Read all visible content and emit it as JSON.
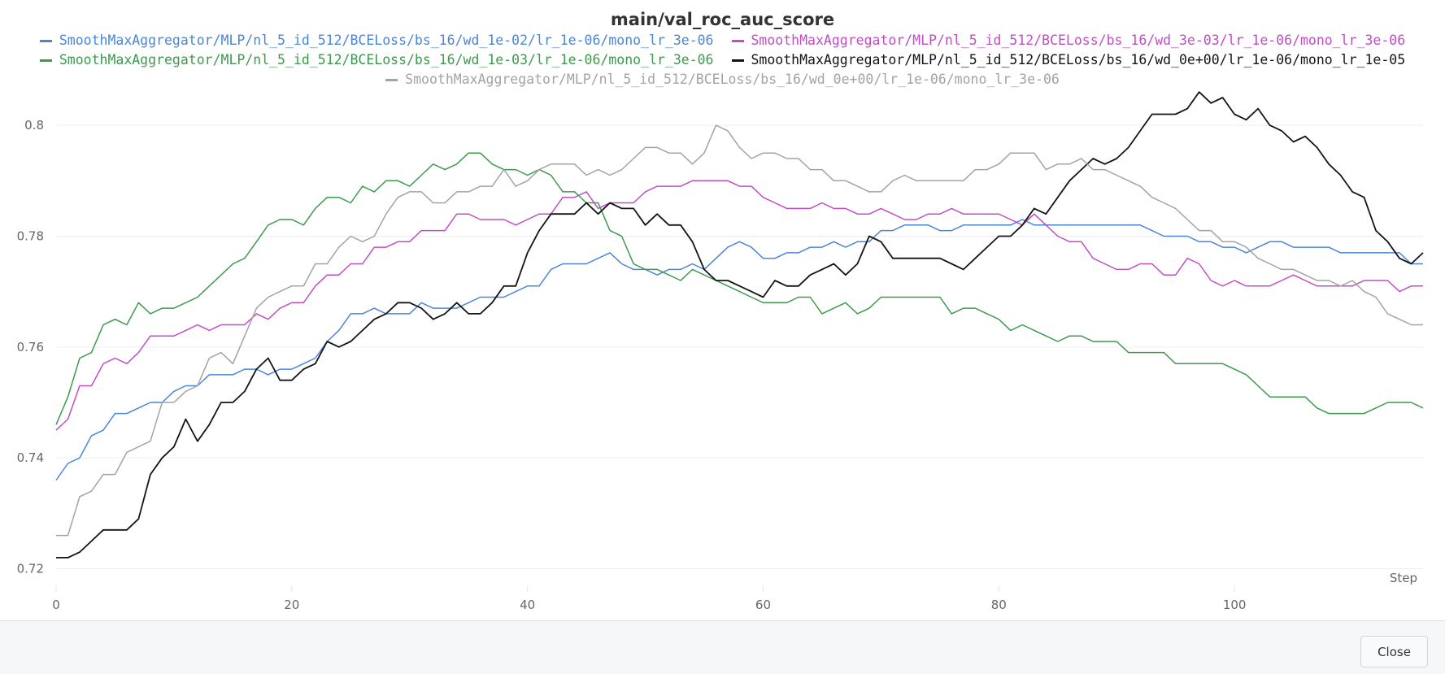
{
  "chart_data": {
    "type": "line",
    "title": "main/val_roc_auc_score",
    "xlabel": "Step",
    "ylabel": "",
    "xlim": [
      0,
      116
    ],
    "ylim": [
      0.717,
      0.805
    ],
    "x_ticks": [
      0,
      20,
      40,
      60,
      80,
      100
    ],
    "y_ticks": [
      0.72,
      0.74,
      0.76,
      0.78,
      0.8
    ],
    "grid": true,
    "legend_position": "top",
    "series": [
      {
        "name": "SmoothMaxAggregator/MLP/nl_5_id_512/BCELoss/bs_16/wd_1e-02/lr_1e-06/mono_lr_3e-06",
        "color": "#4a86d8",
        "x": [
          0,
          1,
          2,
          3,
          4,
          5,
          6,
          7,
          8,
          9,
          10,
          11,
          12,
          13,
          14,
          15,
          16,
          17,
          18,
          19,
          20,
          21,
          22,
          23,
          24,
          25,
          26,
          27,
          28,
          29,
          30,
          31,
          32,
          33,
          34,
          35,
          36,
          37,
          38,
          39,
          40,
          41,
          42,
          43,
          44,
          45,
          46,
          47,
          48,
          49,
          50,
          51,
          52,
          53,
          54,
          55,
          56,
          57,
          58,
          59,
          60,
          61,
          62,
          63,
          64,
          65,
          66,
          67,
          68,
          69,
          70,
          71,
          72,
          73,
          74,
          75,
          76,
          77,
          78,
          79,
          80,
          81,
          82,
          83,
          84,
          85,
          86,
          87,
          88,
          89,
          90,
          91,
          92,
          93,
          94,
          95,
          96,
          97,
          98,
          99,
          100,
          101,
          102,
          103,
          104,
          105,
          106,
          107,
          108,
          109,
          110,
          111,
          112,
          113,
          114,
          115,
          116
        ],
        "values": [
          0.736,
          0.739,
          0.74,
          0.744,
          0.745,
          0.748,
          0.748,
          0.749,
          0.75,
          0.75,
          0.752,
          0.753,
          0.753,
          0.755,
          0.755,
          0.755,
          0.756,
          0.756,
          0.755,
          0.756,
          0.756,
          0.757,
          0.758,
          0.761,
          0.763,
          0.766,
          0.766,
          0.767,
          0.766,
          0.766,
          0.766,
          0.768,
          0.767,
          0.767,
          0.767,
          0.768,
          0.769,
          0.769,
          0.769,
          0.77,
          0.771,
          0.771,
          0.774,
          0.775,
          0.775,
          0.775,
          0.776,
          0.777,
          0.775,
          0.774,
          0.774,
          0.773,
          0.774,
          0.774,
          0.775,
          0.774,
          0.776,
          0.778,
          0.779,
          0.778,
          0.776,
          0.776,
          0.777,
          0.777,
          0.778,
          0.778,
          0.779,
          0.778,
          0.779,
          0.779,
          0.781,
          0.781,
          0.782,
          0.782,
          0.782,
          0.781,
          0.781,
          0.782,
          0.782,
          0.782,
          0.782,
          0.782,
          0.783,
          0.782,
          0.782,
          0.782,
          0.782,
          0.782,
          0.782,
          0.782,
          0.782,
          0.782,
          0.782,
          0.781,
          0.78,
          0.78,
          0.78,
          0.779,
          0.779,
          0.778,
          0.778,
          0.777,
          0.778,
          0.779,
          0.779,
          0.778,
          0.778,
          0.778,
          0.778,
          0.777,
          0.777,
          0.777,
          0.777,
          0.777,
          0.777,
          0.775,
          0.775
        ]
      },
      {
        "name": "SmoothMaxAggregator/MLP/nl_5_id_512/BCELoss/bs_16/wd_3e-03/lr_1e-06/mono_lr_3e-06",
        "color": "#c24dc5",
        "x": [
          0,
          1,
          2,
          3,
          4,
          5,
          6,
          7,
          8,
          9,
          10,
          11,
          12,
          13,
          14,
          15,
          16,
          17,
          18,
          19,
          20,
          21,
          22,
          23,
          24,
          25,
          26,
          27,
          28,
          29,
          30,
          31,
          32,
          33,
          34,
          35,
          36,
          37,
          38,
          39,
          40,
          41,
          42,
          43,
          44,
          45,
          46,
          47,
          48,
          49,
          50,
          51,
          52,
          53,
          54,
          55,
          56,
          57,
          58,
          59,
          60,
          61,
          62,
          63,
          64,
          65,
          66,
          67,
          68,
          69,
          70,
          71,
          72,
          73,
          74,
          75,
          76,
          77,
          78,
          79,
          80,
          81,
          82,
          83,
          84,
          85,
          86,
          87,
          88,
          89,
          90,
          91,
          92,
          93,
          94,
          95,
          96,
          97,
          98,
          99,
          100,
          101,
          102,
          103,
          104,
          105,
          106,
          107,
          108,
          109,
          110,
          111,
          112,
          113,
          114,
          115,
          116
        ],
        "values": [
          0.745,
          0.747,
          0.753,
          0.753,
          0.757,
          0.758,
          0.757,
          0.759,
          0.762,
          0.762,
          0.762,
          0.763,
          0.764,
          0.763,
          0.764,
          0.764,
          0.764,
          0.766,
          0.765,
          0.767,
          0.768,
          0.768,
          0.771,
          0.773,
          0.773,
          0.775,
          0.775,
          0.778,
          0.778,
          0.779,
          0.779,
          0.781,
          0.781,
          0.781,
          0.784,
          0.784,
          0.783,
          0.783,
          0.783,
          0.782,
          0.783,
          0.784,
          0.784,
          0.787,
          0.787,
          0.788,
          0.785,
          0.786,
          0.786,
          0.786,
          0.788,
          0.789,
          0.789,
          0.789,
          0.79,
          0.79,
          0.79,
          0.79,
          0.789,
          0.789,
          0.787,
          0.786,
          0.785,
          0.785,
          0.785,
          0.786,
          0.785,
          0.785,
          0.784,
          0.784,
          0.785,
          0.784,
          0.783,
          0.783,
          0.784,
          0.784,
          0.785,
          0.784,
          0.784,
          0.784,
          0.784,
          0.783,
          0.782,
          0.784,
          0.782,
          0.78,
          0.779,
          0.779,
          0.776,
          0.775,
          0.774,
          0.774,
          0.775,
          0.775,
          0.773,
          0.773,
          0.776,
          0.775,
          0.772,
          0.771,
          0.772,
          0.771,
          0.771,
          0.771,
          0.772,
          0.773,
          0.772,
          0.771,
          0.771,
          0.771,
          0.771,
          0.772,
          0.772,
          0.772,
          0.77,
          0.771,
          0.771
        ]
      },
      {
        "name": "SmoothMaxAggregator/MLP/nl_5_id_512/BCELoss/bs_16/wd_1e-03/lr_1e-06/mono_lr_3e-06",
        "color": "#3d9a4c",
        "x": [
          0,
          1,
          2,
          3,
          4,
          5,
          6,
          7,
          8,
          9,
          10,
          11,
          12,
          13,
          14,
          15,
          16,
          17,
          18,
          19,
          20,
          21,
          22,
          23,
          24,
          25,
          26,
          27,
          28,
          29,
          30,
          31,
          32,
          33,
          34,
          35,
          36,
          37,
          38,
          39,
          40,
          41,
          42,
          43,
          44,
          45,
          46,
          47,
          48,
          49,
          50,
          51,
          52,
          53,
          54,
          55,
          56,
          57,
          58,
          59,
          60,
          61,
          62,
          63,
          64,
          65,
          66,
          67,
          68,
          69,
          70,
          71,
          72,
          73,
          74,
          75,
          76,
          77,
          78,
          79,
          80,
          81,
          82,
          83,
          84,
          85,
          86,
          87,
          88,
          89,
          90,
          91,
          92,
          93,
          94,
          95,
          96,
          97,
          98,
          99,
          100,
          101,
          102,
          103,
          104,
          105,
          106,
          107,
          108,
          109,
          110,
          111,
          112,
          113,
          114,
          115,
          116
        ],
        "values": [
          0.746,
          0.751,
          0.758,
          0.759,
          0.764,
          0.765,
          0.764,
          0.768,
          0.766,
          0.767,
          0.767,
          0.768,
          0.769,
          0.771,
          0.773,
          0.775,
          0.776,
          0.779,
          0.782,
          0.783,
          0.783,
          0.782,
          0.785,
          0.787,
          0.787,
          0.786,
          0.789,
          0.788,
          0.79,
          0.79,
          0.789,
          0.791,
          0.793,
          0.792,
          0.793,
          0.795,
          0.795,
          0.793,
          0.792,
          0.792,
          0.791,
          0.792,
          0.791,
          0.788,
          0.788,
          0.786,
          0.786,
          0.781,
          0.78,
          0.775,
          0.774,
          0.774,
          0.773,
          0.772,
          0.774,
          0.773,
          0.772,
          0.771,
          0.77,
          0.769,
          0.768,
          0.768,
          0.768,
          0.769,
          0.769,
          0.766,
          0.767,
          0.768,
          0.766,
          0.767,
          0.769,
          0.769,
          0.769,
          0.769,
          0.769,
          0.769,
          0.766,
          0.767,
          0.767,
          0.766,
          0.765,
          0.763,
          0.764,
          0.763,
          0.762,
          0.761,
          0.762,
          0.762,
          0.761,
          0.761,
          0.761,
          0.759,
          0.759,
          0.759,
          0.759,
          0.757,
          0.757,
          0.757,
          0.757,
          0.757,
          0.756,
          0.755,
          0.753,
          0.751,
          0.751,
          0.751,
          0.751,
          0.749,
          0.748,
          0.748,
          0.748,
          0.748,
          0.749,
          0.75,
          0.75,
          0.75,
          0.749
        ]
      },
      {
        "name": "SmoothMaxAggregator/MLP/nl_5_id_512/BCELoss/bs_16/wd_0e+00/lr_1e-06/mono_lr_1e-05",
        "color": "#141414",
        "x": [
          0,
          1,
          2,
          3,
          4,
          5,
          6,
          7,
          8,
          9,
          10,
          11,
          12,
          13,
          14,
          15,
          16,
          17,
          18,
          19,
          20,
          21,
          22,
          23,
          24,
          25,
          26,
          27,
          28,
          29,
          30,
          31,
          32,
          33,
          34,
          35,
          36,
          37,
          38,
          39,
          40,
          41,
          42,
          43,
          44,
          45,
          46,
          47,
          48,
          49,
          50,
          51,
          52,
          53,
          54,
          55,
          56,
          57,
          58,
          59,
          60,
          61,
          62,
          63,
          64,
          65,
          66,
          67,
          68,
          69,
          70,
          71,
          72,
          73,
          74,
          75,
          76,
          77,
          78,
          79,
          80,
          81,
          82,
          83,
          84,
          85,
          86,
          87,
          88,
          89,
          90,
          91,
          92,
          93,
          94,
          95,
          96,
          97,
          98,
          99,
          100,
          101,
          102,
          103,
          104,
          105,
          106,
          107,
          108,
          109,
          110,
          111,
          112,
          113,
          114,
          115,
          116
        ],
        "values": [
          0.722,
          0.722,
          0.723,
          0.725,
          0.727,
          0.727,
          0.727,
          0.729,
          0.737,
          0.74,
          0.742,
          0.747,
          0.743,
          0.746,
          0.75,
          0.75,
          0.752,
          0.756,
          0.758,
          0.754,
          0.754,
          0.756,
          0.757,
          0.761,
          0.76,
          0.761,
          0.763,
          0.765,
          0.766,
          0.768,
          0.768,
          0.767,
          0.765,
          0.766,
          0.768,
          0.766,
          0.766,
          0.768,
          0.771,
          0.771,
          0.777,
          0.781,
          0.784,
          0.784,
          0.784,
          0.786,
          0.784,
          0.786,
          0.785,
          0.785,
          0.782,
          0.784,
          0.782,
          0.782,
          0.779,
          0.774,
          0.772,
          0.772,
          0.771,
          0.77,
          0.769,
          0.772,
          0.771,
          0.771,
          0.773,
          0.774,
          0.775,
          0.773,
          0.775,
          0.78,
          0.779,
          0.776,
          0.776,
          0.776,
          0.776,
          0.776,
          0.775,
          0.774,
          0.776,
          0.778,
          0.78,
          0.78,
          0.782,
          0.785,
          0.784,
          0.787,
          0.79,
          0.792,
          0.794,
          0.793,
          0.794,
          0.796,
          0.799,
          0.802,
          0.802,
          0.802,
          0.803,
          0.806,
          0.804,
          0.805,
          0.802,
          0.801,
          0.803,
          0.8,
          0.799,
          0.797,
          0.798,
          0.796,
          0.793,
          0.791,
          0.788,
          0.787,
          0.781,
          0.779,
          0.776,
          0.775,
          0.777
        ]
      },
      {
        "name": "SmoothMaxAggregator/MLP/nl_5_id_512/BCELoss/bs_16/wd_0e+00/lr_1e-06/mono_lr_3e-06",
        "color": "#a3a3a3",
        "x": [
          0,
          1,
          2,
          3,
          4,
          5,
          6,
          7,
          8,
          9,
          10,
          11,
          12,
          13,
          14,
          15,
          16,
          17,
          18,
          19,
          20,
          21,
          22,
          23,
          24,
          25,
          26,
          27,
          28,
          29,
          30,
          31,
          32,
          33,
          34,
          35,
          36,
          37,
          38,
          39,
          40,
          41,
          42,
          43,
          44,
          45,
          46,
          47,
          48,
          49,
          50,
          51,
          52,
          53,
          54,
          55,
          56,
          57,
          58,
          59,
          60,
          61,
          62,
          63,
          64,
          65,
          66,
          67,
          68,
          69,
          70,
          71,
          72,
          73,
          74,
          75,
          76,
          77,
          78,
          79,
          80,
          81,
          82,
          83,
          84,
          85,
          86,
          87,
          88,
          89,
          90,
          91,
          92,
          93,
          94,
          95,
          96,
          97,
          98,
          99,
          100,
          101,
          102,
          103,
          104,
          105,
          106,
          107,
          108,
          109,
          110,
          111,
          112,
          113,
          114,
          115,
          116
        ],
        "values": [
          0.726,
          0.726,
          0.733,
          0.734,
          0.737,
          0.737,
          0.741,
          0.742,
          0.743,
          0.75,
          0.75,
          0.752,
          0.753,
          0.758,
          0.759,
          0.757,
          0.762,
          0.767,
          0.769,
          0.77,
          0.771,
          0.771,
          0.775,
          0.775,
          0.778,
          0.78,
          0.779,
          0.78,
          0.784,
          0.787,
          0.788,
          0.788,
          0.786,
          0.786,
          0.788,
          0.788,
          0.789,
          0.789,
          0.792,
          0.789,
          0.79,
          0.792,
          0.793,
          0.793,
          0.793,
          0.791,
          0.792,
          0.791,
          0.792,
          0.794,
          0.796,
          0.796,
          0.795,
          0.795,
          0.793,
          0.795,
          0.8,
          0.799,
          0.796,
          0.794,
          0.795,
          0.795,
          0.794,
          0.794,
          0.792,
          0.792,
          0.79,
          0.79,
          0.789,
          0.788,
          0.788,
          0.79,
          0.791,
          0.79,
          0.79,
          0.79,
          0.79,
          0.79,
          0.792,
          0.792,
          0.793,
          0.795,
          0.795,
          0.795,
          0.792,
          0.793,
          0.793,
          0.794,
          0.792,
          0.792,
          0.791,
          0.79,
          0.789,
          0.787,
          0.786,
          0.785,
          0.783,
          0.781,
          0.781,
          0.779,
          0.779,
          0.778,
          0.776,
          0.775,
          0.774,
          0.774,
          0.773,
          0.772,
          0.772,
          0.771,
          0.772,
          0.77,
          0.769,
          0.766,
          0.765,
          0.764,
          0.764
        ]
      }
    ]
  },
  "footer": {
    "close_label": "Close"
  }
}
